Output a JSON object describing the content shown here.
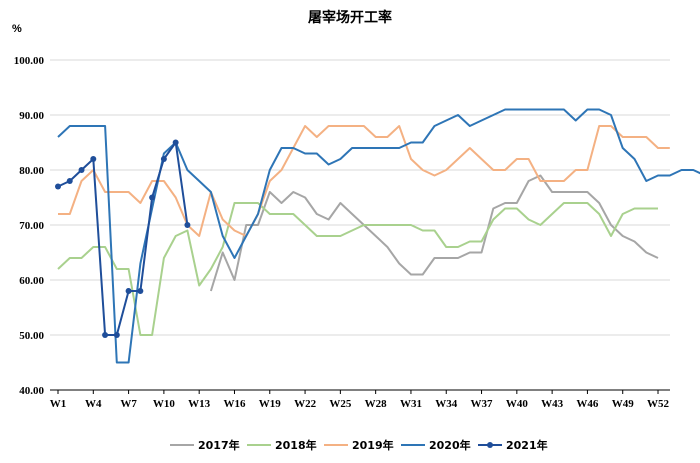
{
  "chart_data": {
    "type": "line",
    "title": "屠宰场开工率",
    "ylabel": "%",
    "ylim": [
      40,
      100
    ],
    "yticks": [
      "40.00",
      "50.00",
      "60.00",
      "70.00",
      "80.00",
      "90.00",
      "100.00"
    ],
    "grid": "horizontal",
    "legend_position": "bottom",
    "xtick_labels": [
      "W1",
      "W4",
      "W7",
      "W10",
      "W13",
      "W16",
      "W19",
      "W22",
      "W25",
      "W28",
      "W31",
      "W34",
      "W37",
      "W40",
      "W43",
      "W46",
      "W49",
      "W52"
    ],
    "series": [
      {
        "name": "2017年",
        "color": "#a6a6a6",
        "marker": false,
        "start_week": 14,
        "values": [
          58,
          65,
          60,
          70,
          70,
          76,
          74,
          76,
          75,
          72,
          71,
          74,
          72,
          70,
          68,
          66,
          63,
          61,
          61,
          64,
          64,
          64,
          65,
          65,
          73,
          74,
          74,
          78,
          79,
          76,
          76,
          76,
          76,
          74,
          70,
          68,
          67,
          65,
          64
        ]
      },
      {
        "name": "2018年",
        "color": "#a9d18e",
        "marker": false,
        "start_week": 1,
        "values": [
          62,
          64,
          64,
          66,
          66,
          62,
          62,
          50,
          50,
          64,
          68,
          69,
          59,
          62,
          66,
          74,
          74,
          74,
          72,
          72,
          72,
          70,
          68,
          68,
          68,
          69,
          70,
          70,
          70,
          70,
          70,
          69,
          69,
          66,
          66,
          67,
          67,
          71,
          73,
          73,
          71,
          70,
          72,
          74,
          74,
          74,
          72,
          68,
          72,
          73,
          73,
          73
        ]
      },
      {
        "name": "2019年",
        "color": "#f4b183",
        "marker": false,
        "start_week": 1,
        "values": [
          72,
          72,
          78,
          80,
          76,
          76,
          76,
          74,
          78,
          78,
          75,
          70,
          68,
          76,
          71,
          69,
          68,
          72,
          78,
          80,
          84,
          88,
          86,
          88,
          88,
          88,
          88,
          86,
          86,
          88,
          82,
          80,
          79,
          80,
          82,
          84,
          82,
          80,
          80,
          82,
          82,
          78,
          78,
          78,
          80,
          80,
          88,
          88,
          86,
          86,
          86,
          84,
          84
        ]
      },
      {
        "name": "2020年",
        "color": "#2e75b6",
        "marker": false,
        "start_week": 1,
        "values": [
          86,
          88,
          88,
          88,
          88,
          45,
          45,
          63,
          73,
          83,
          85,
          80,
          78,
          76,
          68,
          64,
          68,
          72,
          80,
          84,
          84,
          83,
          83,
          81,
          82,
          84,
          84,
          84,
          84,
          84,
          85,
          85,
          88,
          89,
          90,
          88,
          89,
          90,
          91,
          91,
          91,
          91,
          91,
          91,
          89,
          91,
          91,
          90,
          84,
          82,
          78,
          79,
          79,
          80,
          80,
          79
        ]
      },
      {
        "name": "2021年",
        "color": "#1f4e9a",
        "marker": true,
        "start_week": 1,
        "values": [
          77,
          78,
          80,
          82,
          50,
          50,
          58,
          58,
          75,
          82,
          85,
          70
        ]
      }
    ]
  }
}
